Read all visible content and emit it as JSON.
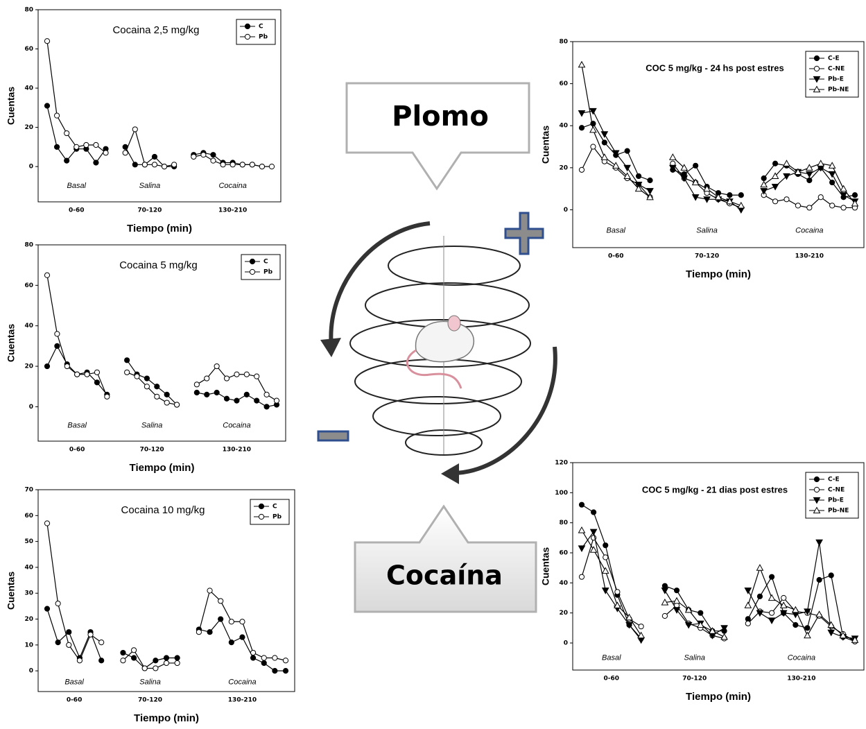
{
  "chart_data": [
    {
      "type": "line",
      "title": "Cocaina 2,5 mg/kg",
      "xlabel": "Tiempo (min)",
      "ylabel": "Cuentas",
      "ylim": [
        -18,
        80
      ],
      "yticks": [
        0,
        20,
        40,
        60,
        80
      ],
      "legend": "upper right",
      "phases": [
        {
          "name": "Basal",
          "range": "0-60"
        },
        {
          "name": "Salina",
          "range": "70-120"
        },
        {
          "name": "Cocaina",
          "range": "130-210"
        }
      ],
      "categories": [
        null,
        null,
        null,
        null,
        null,
        null,
        null,
        null,
        null,
        null,
        null,
        null,
        null,
        null,
        null,
        null,
        null,
        null,
        null,
        null,
        null,
        null,
        null,
        null
      ],
      "series": [
        {
          "name": "C",
          "color": "#000000",
          "marker": "circle",
          "filled": true,
          "values": [
            31,
            10,
            3,
            9,
            9,
            2,
            9,
            null,
            10,
            1,
            1,
            5,
            0,
            0,
            null,
            6,
            7,
            6,
            2,
            2,
            1,
            1,
            0,
            null
          ]
        },
        {
          "name": "Pb",
          "color": "#000000",
          "marker": "circle",
          "filled": false,
          "values": [
            64,
            26,
            17,
            10,
            11,
            11,
            7,
            null,
            7,
            19,
            1,
            1,
            0,
            1,
            null,
            5,
            6,
            3,
            1,
            1,
            1,
            1,
            0,
            0
          ]
        }
      ]
    },
    {
      "type": "line",
      "title": "Cocaina 5 mg/kg",
      "xlabel": "Tiempo (min)",
      "ylabel": "Cuentas",
      "ylim": [
        -17,
        80
      ],
      "yticks": [
        0,
        20,
        40,
        60,
        80
      ],
      "legend": "upper right",
      "phases": [
        {
          "name": "Basal",
          "range": "0-60"
        },
        {
          "name": "Salina",
          "range": "70-120"
        },
        {
          "name": "Cocaina",
          "range": "130-210"
        }
      ],
      "categories": [
        null,
        null,
        null,
        null,
        null,
        null,
        null,
        null,
        null,
        null,
        null,
        null,
        null,
        null,
        null,
        null,
        null,
        null,
        null,
        null,
        null,
        null,
        null,
        null
      ],
      "series": [
        {
          "name": "C",
          "color": "#000000",
          "marker": "circle",
          "filled": true,
          "values": [
            20,
            30,
            21,
            16,
            17,
            12,
            6,
            null,
            23,
            16,
            14,
            10,
            6,
            1,
            null,
            7,
            6,
            7,
            4,
            3,
            6,
            3,
            0,
            1
          ]
        },
        {
          "name": "Pb",
          "color": "#000000",
          "marker": "circle",
          "filled": false,
          "values": [
            65,
            36,
            20,
            16,
            16,
            17,
            5,
            null,
            17,
            15,
            10,
            5,
            2,
            1,
            null,
            11,
            14,
            20,
            14,
            16,
            16,
            15,
            6,
            3
          ]
        }
      ]
    },
    {
      "type": "line",
      "title": "Cocaina 10 mg/kg",
      "xlabel": "Tiempo (min)",
      "ylabel": "Cuentas",
      "ylim": [
        -8,
        70
      ],
      "yticks": [
        0,
        10,
        20,
        30,
        40,
        50,
        60,
        70
      ],
      "legend": "upper right",
      "phases": [
        {
          "name": "Basal",
          "range": "0-60"
        },
        {
          "name": "Salina",
          "range": "70-120"
        },
        {
          "name": "Cocaina",
          "range": "130-210"
        }
      ],
      "categories": [
        null,
        null,
        null,
        null,
        null,
        null,
        null,
        null,
        null,
        null,
        null,
        null,
        null,
        null,
        null,
        null,
        null,
        null,
        null,
        null,
        null,
        null,
        null
      ],
      "series": [
        {
          "name": "C",
          "color": "#000000",
          "marker": "circle",
          "filled": true,
          "values": [
            24,
            11,
            15,
            5,
            15,
            4,
            null,
            7,
            5,
            1,
            4,
            5,
            5,
            null,
            16,
            15,
            20,
            11,
            13,
            5,
            3,
            0,
            0
          ]
        },
        {
          "name": "Pb",
          "color": "#000000",
          "marker": "circle",
          "filled": false,
          "values": [
            57,
            26,
            10,
            4,
            14,
            11,
            null,
            4,
            8,
            1,
            1,
            3,
            3,
            null,
            15,
            31,
            27,
            19,
            19,
            7,
            5,
            5,
            4
          ]
        }
      ]
    },
    {
      "type": "line",
      "title": "COC 5 mg/kg - 24 hs post estres",
      "xlabel": "Tiempo (min)",
      "ylabel": "Cuentas",
      "ylim": [
        -18,
        80
      ],
      "yticks": [
        0,
        20,
        40,
        60,
        80
      ],
      "legend": "upper right",
      "phases": [
        {
          "name": "Basal",
          "range": "0-60"
        },
        {
          "name": "Salina",
          "range": "70-120"
        },
        {
          "name": "Cocaina",
          "range": "130-210"
        }
      ],
      "categories": [
        null,
        null,
        null,
        null,
        null,
        null,
        null,
        null,
        null,
        null,
        null,
        null,
        null,
        null,
        null,
        null,
        null,
        null,
        null,
        null,
        null,
        null,
        null,
        null,
        null
      ],
      "series": [
        {
          "name": "C-E",
          "color": "#000000",
          "marker": "circle",
          "filled": true,
          "values": [
            39,
            41,
            32,
            26,
            28,
            16,
            14,
            null,
            19,
            17,
            21,
            11,
            8,
            7,
            7,
            null,
            15,
            22,
            21,
            17,
            14,
            20,
            13,
            6,
            7
          ]
        },
        {
          "name": "C-NE",
          "color": "#000000",
          "marker": "circle",
          "filled": false,
          "values": [
            19,
            30,
            23,
            20,
            15,
            12,
            6,
            null,
            22,
            15,
            13,
            8,
            5,
            3,
            1,
            null,
            7,
            4,
            5,
            2,
            1,
            6,
            2,
            1,
            1
          ]
        },
        {
          "name": "Pb-E",
          "color": "#000000",
          "marker": "triangle-down",
          "filled": true,
          "values": [
            46,
            47,
            36,
            27,
            20,
            12,
            9,
            null,
            20,
            15,
            6,
            5,
            5,
            4,
            0,
            null,
            9,
            11,
            16,
            18,
            17,
            20,
            17,
            7,
            4
          ]
        },
        {
          "name": "Pb-NE",
          "color": "#000000",
          "marker": "triangle-up",
          "filled": false,
          "values": [
            69,
            38,
            25,
            21,
            16,
            10,
            6,
            null,
            25,
            20,
            13,
            10,
            6,
            4,
            2,
            null,
            12,
            16,
            22,
            18,
            20,
            22,
            21,
            10,
            3
          ]
        }
      ]
    },
    {
      "type": "line",
      "title": "COC 5 mg/kg - 21 dias post estres",
      "xlabel": "Tiempo (min)",
      "ylabel": "Cuentas",
      "ylim": [
        -18,
        120
      ],
      "yticks": [
        0,
        20,
        40,
        60,
        80,
        100,
        120
      ],
      "legend": "upper right",
      "phases": [
        {
          "name": "Basal",
          "range": "0-60"
        },
        {
          "name": "Salina",
          "range": "70-120"
        },
        {
          "name": "Cocaina",
          "range": "130-210"
        }
      ],
      "categories": [
        null,
        null,
        null,
        null,
        null,
        null,
        null,
        null,
        null,
        null,
        null,
        null,
        null,
        null,
        null,
        null,
        null,
        null,
        null,
        null,
        null,
        null,
        null,
        null
      ],
      "series": [
        {
          "name": "C-E",
          "color": "#000000",
          "marker": "circle",
          "filled": true,
          "values": [
            92,
            87,
            65,
            32,
            12,
            3,
            null,
            38,
            35,
            22,
            20,
            8,
            8,
            null,
            16,
            31,
            44,
            20,
            12,
            10,
            42,
            45,
            4,
            1
          ]
        },
        {
          "name": "C-NE",
          "color": "#000000",
          "marker": "circle",
          "filled": false,
          "values": [
            44,
            70,
            57,
            34,
            16,
            11,
            null,
            18,
            25,
            13,
            10,
            5,
            3,
            null,
            13,
            21,
            20,
            30,
            21,
            20,
            18,
            11,
            6,
            1
          ]
        },
        {
          "name": "Pb-E",
          "color": "#000000",
          "marker": "triangle-down",
          "filled": true,
          "values": [
            63,
            74,
            35,
            23,
            12,
            2,
            null,
            35,
            22,
            12,
            13,
            5,
            10,
            null,
            35,
            20,
            15,
            20,
            19,
            21,
            67,
            7,
            4,
            3
          ]
        },
        {
          "name": "Pb-NE",
          "color": "#000000",
          "marker": "triangle-up",
          "filled": false,
          "values": [
            75,
            62,
            48,
            25,
            17,
            5,
            null,
            27,
            28,
            22,
            12,
            8,
            4,
            null,
            25,
            50,
            30,
            25,
            22,
            5,
            19,
            12,
            5,
            2
          ]
        }
      ]
    }
  ],
  "diagram": {
    "top_label": "Plomo",
    "bottom_label": "Cocaína"
  }
}
